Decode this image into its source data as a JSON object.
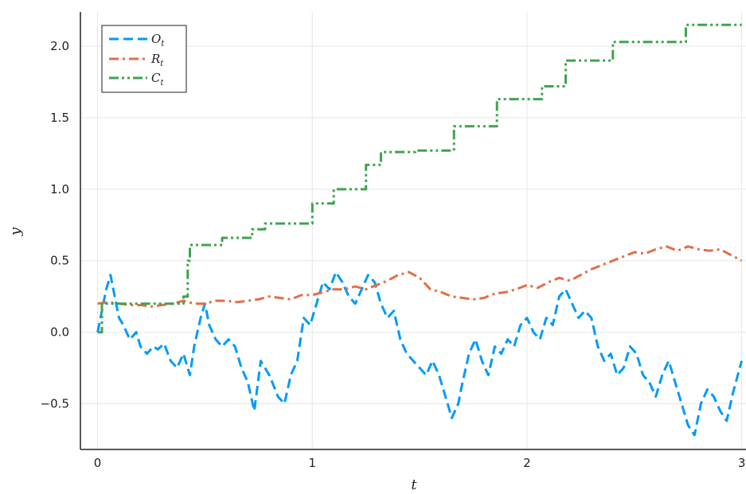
{
  "chart_data": {
    "type": "line",
    "xlabel": "t",
    "ylabel": "y",
    "xlim": [
      -0.08,
      3.02
    ],
    "ylim": [
      -0.82,
      2.24
    ],
    "xticks": [
      0,
      1,
      2,
      3
    ],
    "xtick_labels": [
      "0",
      "1",
      "2",
      "3"
    ],
    "yticks": [
      -0.5,
      0.0,
      0.5,
      1.0,
      1.5,
      2.0
    ],
    "ytick_labels": [
      "−0.5",
      "0.0",
      "0.5",
      "1.0",
      "1.5",
      "2.0"
    ],
    "grid": true,
    "legend_position": "top-left",
    "series": [
      {
        "name": "O",
        "name_subscript": "t",
        "color": "#009AFA",
        "dash": "dashed",
        "x": [
          0.0,
          0.02,
          0.04,
          0.06,
          0.08,
          0.1,
          0.12,
          0.15,
          0.18,
          0.2,
          0.23,
          0.26,
          0.28,
          0.31,
          0.34,
          0.37,
          0.4,
          0.43,
          0.45,
          0.48,
          0.5,
          0.52,
          0.55,
          0.58,
          0.61,
          0.64,
          0.67,
          0.7,
          0.73,
          0.76,
          0.8,
          0.84,
          0.87,
          0.9,
          0.93,
          0.96,
          0.99,
          1.02,
          1.05,
          1.08,
          1.11,
          1.14,
          1.17,
          1.2,
          1.23,
          1.26,
          1.29,
          1.32,
          1.35,
          1.38,
          1.41,
          1.44,
          1.47,
          1.5,
          1.53,
          1.56,
          1.59,
          1.62,
          1.65,
          1.68,
          1.7,
          1.73,
          1.76,
          1.79,
          1.82,
          1.85,
          1.88,
          1.91,
          1.94,
          1.97,
          2.0,
          2.03,
          2.06,
          2.09,
          2.12,
          2.15,
          2.18,
          2.21,
          2.24,
          2.27,
          2.3,
          2.33,
          2.36,
          2.39,
          2.42,
          2.45,
          2.48,
          2.51,
          2.54,
          2.57,
          2.6,
          2.63,
          2.66,
          2.69,
          2.72,
          2.75,
          2.78,
          2.81,
          2.84,
          2.87,
          2.9,
          2.93,
          2.96,
          3.0
        ],
        "y": [
          0.0,
          0.15,
          0.3,
          0.4,
          0.25,
          0.1,
          0.05,
          -0.05,
          0.0,
          -0.1,
          -0.15,
          -0.1,
          -0.12,
          -0.08,
          -0.2,
          -0.25,
          -0.15,
          -0.3,
          -0.1,
          0.1,
          0.2,
          0.05,
          -0.05,
          -0.1,
          -0.05,
          -0.1,
          -0.25,
          -0.35,
          -0.55,
          -0.2,
          -0.3,
          -0.45,
          -0.5,
          -0.3,
          -0.2,
          0.1,
          0.05,
          0.2,
          0.35,
          0.3,
          0.42,
          0.35,
          0.25,
          0.2,
          0.3,
          0.4,
          0.35,
          0.2,
          0.1,
          0.15,
          -0.05,
          -0.15,
          -0.2,
          -0.25,
          -0.3,
          -0.2,
          -0.3,
          -0.45,
          -0.6,
          -0.5,
          -0.35,
          -0.15,
          -0.05,
          -0.2,
          -0.3,
          -0.1,
          -0.15,
          -0.05,
          -0.1,
          0.05,
          0.1,
          0.0,
          -0.05,
          0.1,
          0.05,
          0.25,
          0.3,
          0.2,
          0.1,
          0.15,
          0.1,
          -0.1,
          -0.2,
          -0.15,
          -0.3,
          -0.25,
          -0.1,
          -0.15,
          -0.3,
          -0.35,
          -0.45,
          -0.3,
          -0.2,
          -0.35,
          -0.5,
          -0.65,
          -0.72,
          -0.5,
          -0.4,
          -0.45,
          -0.55,
          -0.62,
          -0.42,
          -0.2
        ]
      },
      {
        "name": "R",
        "name_subscript": "t",
        "color": "#E26F46",
        "dash": "dashdot",
        "x": [
          0.0,
          0.05,
          0.1,
          0.15,
          0.2,
          0.25,
          0.3,
          0.35,
          0.4,
          0.45,
          0.5,
          0.55,
          0.6,
          0.65,
          0.7,
          0.75,
          0.8,
          0.85,
          0.9,
          0.95,
          1.0,
          1.05,
          1.1,
          1.15,
          1.2,
          1.25,
          1.3,
          1.35,
          1.4,
          1.45,
          1.5,
          1.55,
          1.6,
          1.65,
          1.7,
          1.75,
          1.8,
          1.85,
          1.9,
          1.95,
          2.0,
          2.05,
          2.1,
          2.15,
          2.2,
          2.25,
          2.3,
          2.35,
          2.4,
          2.45,
          2.5,
          2.55,
          2.6,
          2.65,
          2.7,
          2.75,
          2.8,
          2.85,
          2.9,
          2.95,
          3.0
        ],
        "y": [
          0.2,
          0.21,
          0.2,
          0.19,
          0.19,
          0.18,
          0.19,
          0.2,
          0.22,
          0.2,
          0.2,
          0.22,
          0.22,
          0.21,
          0.22,
          0.23,
          0.25,
          0.24,
          0.23,
          0.26,
          0.26,
          0.28,
          0.3,
          0.3,
          0.32,
          0.3,
          0.33,
          0.36,
          0.4,
          0.42,
          0.38,
          0.3,
          0.28,
          0.25,
          0.24,
          0.23,
          0.24,
          0.27,
          0.28,
          0.3,
          0.33,
          0.31,
          0.35,
          0.38,
          0.36,
          0.4,
          0.44,
          0.47,
          0.5,
          0.53,
          0.56,
          0.55,
          0.58,
          0.6,
          0.57,
          0.6,
          0.58,
          0.57,
          0.58,
          0.54,
          0.5
        ]
      },
      {
        "name": "C",
        "name_subscript": "t",
        "color": "#3EA44E",
        "dash": "dashdotdot",
        "x": [
          0.0,
          0.02,
          0.02,
          0.4,
          0.4,
          0.42,
          0.42,
          0.43,
          0.43,
          0.58,
          0.58,
          0.72,
          0.72,
          0.78,
          0.78,
          1.0,
          1.0,
          1.1,
          1.1,
          1.25,
          1.25,
          1.32,
          1.32,
          1.48,
          1.48,
          1.66,
          1.66,
          1.86,
          1.86,
          2.07,
          2.07,
          2.18,
          2.18,
          2.4,
          2.4,
          2.74,
          2.74,
          3.0
        ],
        "y": [
          0.0,
          0.0,
          0.2,
          0.2,
          0.25,
          0.25,
          0.5,
          0.5,
          0.61,
          0.61,
          0.66,
          0.66,
          0.72,
          0.72,
          0.76,
          0.76,
          0.9,
          0.9,
          1.0,
          1.0,
          1.17,
          1.17,
          1.26,
          1.26,
          1.27,
          1.27,
          1.44,
          1.44,
          1.63,
          1.63,
          1.72,
          1.72,
          1.9,
          1.9,
          2.03,
          2.03,
          2.15,
          2.15
        ]
      }
    ]
  }
}
